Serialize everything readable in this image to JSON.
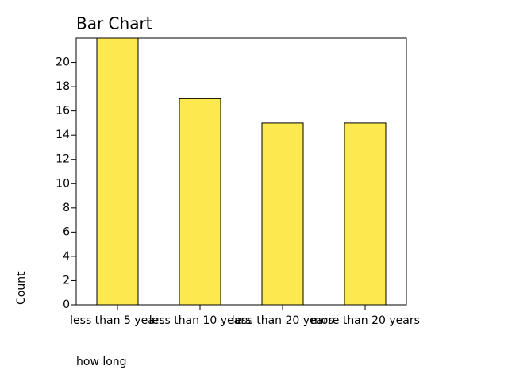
{
  "chart_data": {
    "type": "bar",
    "title": "Bar Chart",
    "x_label": "how long",
    "y_label": "Count",
    "categories": [
      "less than 5 years",
      "less than 10 years",
      "less than 20 years",
      "more than 20 years"
    ],
    "values": [
      22,
      17,
      15,
      15
    ],
    "color": "#fce94f",
    "ylim": [
      0,
      22
    ],
    "yticks": [
      0,
      2,
      4,
      6,
      8,
      10,
      12,
      14,
      16,
      18,
      20
    ],
    "grid": false
  }
}
